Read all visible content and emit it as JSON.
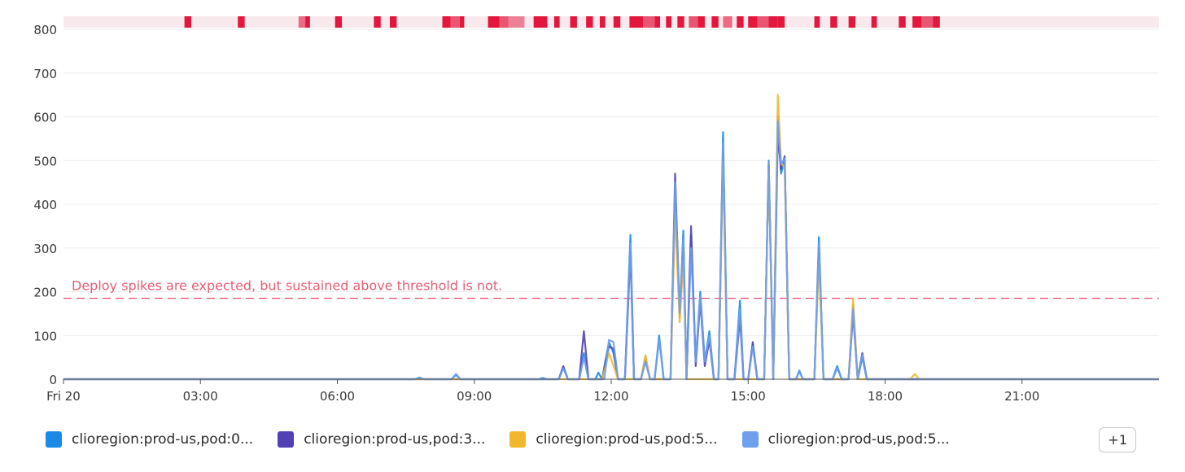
{
  "chart_data": {
    "type": "line",
    "ylim": [
      0,
      800
    ],
    "y_ticks": [
      0,
      100,
      200,
      300,
      400,
      500,
      600,
      700,
      800
    ],
    "x_range_hours": [
      0,
      24
    ],
    "x_ticks": [
      {
        "hour": 0,
        "label": "Fri 20"
      },
      {
        "hour": 3,
        "label": "03:00"
      },
      {
        "hour": 6,
        "label": "06:00"
      },
      {
        "hour": 9,
        "label": "09:00"
      },
      {
        "hour": 12,
        "label": "12:00"
      },
      {
        "hour": 15,
        "label": "15:00"
      },
      {
        "hour": 18,
        "label": "18:00"
      },
      {
        "hour": 21,
        "label": "21:00"
      }
    ],
    "threshold": {
      "value": 185,
      "label": "Deploy spikes are expected, but sustained above threshold is not.",
      "color": "#e85d75"
    },
    "event_bar_color": "#e3173e",
    "events": [
      [
        2.65,
        0.15,
        1
      ],
      [
        3.82,
        0.15,
        1
      ],
      [
        5.15,
        0.18,
        0.6
      ],
      [
        5.3,
        0.1,
        1
      ],
      [
        5.95,
        0.15,
        1
      ],
      [
        6.8,
        0.15,
        1
      ],
      [
        7.15,
        0.15,
        1
      ],
      [
        8.3,
        0.18,
        1
      ],
      [
        8.48,
        0.2,
        0.7
      ],
      [
        8.68,
        0.1,
        1
      ],
      [
        9.3,
        0.25,
        1
      ],
      [
        9.55,
        0.2,
        0.7
      ],
      [
        9.75,
        0.35,
        0.5
      ],
      [
        10.3,
        0.3,
        1
      ],
      [
        10.75,
        0.12,
        1
      ],
      [
        11.1,
        0.15,
        1
      ],
      [
        11.45,
        0.15,
        1
      ],
      [
        11.75,
        0.12,
        1
      ],
      [
        12.05,
        0.15,
        1
      ],
      [
        12.4,
        0.3,
        1
      ],
      [
        12.7,
        0.25,
        0.7
      ],
      [
        12.95,
        0.12,
        1
      ],
      [
        13.2,
        0.12,
        1
      ],
      [
        13.45,
        0.15,
        1
      ],
      [
        13.7,
        0.2,
        0.7
      ],
      [
        13.9,
        0.15,
        1
      ],
      [
        14.2,
        0.15,
        1
      ],
      [
        14.45,
        0.2,
        0.6
      ],
      [
        14.75,
        0.15,
        1
      ],
      [
        15.0,
        0.2,
        1
      ],
      [
        15.2,
        0.25,
        0.7
      ],
      [
        15.45,
        0.2,
        1
      ],
      [
        15.65,
        0.15,
        1
      ],
      [
        16.45,
        0.12,
        1
      ],
      [
        16.8,
        0.15,
        1
      ],
      [
        17.2,
        0.15,
        1
      ],
      [
        17.7,
        0.12,
        1
      ],
      [
        18.3,
        0.15,
        1
      ],
      [
        18.6,
        0.2,
        1
      ],
      [
        18.8,
        0.3,
        0.7
      ],
      [
        19.05,
        0.15,
        1
      ]
    ],
    "series": [
      {
        "name": "clioregion:prod-us,pod:0...",
        "color": "#1a8ae5",
        "points": [
          [
            0,
            0
          ],
          [
            7.7,
            0
          ],
          [
            7.8,
            4
          ],
          [
            7.9,
            0
          ],
          [
            8.5,
            0
          ],
          [
            8.6,
            10
          ],
          [
            8.7,
            0
          ],
          [
            10.4,
            0
          ],
          [
            10.5,
            3
          ],
          [
            10.6,
            0
          ],
          [
            10.85,
            0
          ],
          [
            10.95,
            28
          ],
          [
            11.05,
            0
          ],
          [
            11.3,
            0
          ],
          [
            11.4,
            60
          ],
          [
            11.5,
            0
          ],
          [
            11.65,
            0
          ],
          [
            11.72,
            15
          ],
          [
            11.8,
            0
          ],
          [
            11.85,
            30
          ],
          [
            11.95,
            85
          ],
          [
            12.05,
            60
          ],
          [
            12.15,
            0
          ],
          [
            12.3,
            0
          ],
          [
            12.42,
            330
          ],
          [
            12.5,
            0
          ],
          [
            12.65,
            0
          ],
          [
            12.75,
            50
          ],
          [
            12.85,
            0
          ],
          [
            12.95,
            0
          ],
          [
            13.05,
            100
          ],
          [
            13.15,
            0
          ],
          [
            13.3,
            0
          ],
          [
            13.4,
            440
          ],
          [
            13.5,
            140
          ],
          [
            13.58,
            340
          ],
          [
            13.65,
            0
          ],
          [
            13.75,
            330
          ],
          [
            13.85,
            40
          ],
          [
            13.95,
            200
          ],
          [
            14.05,
            40
          ],
          [
            14.15,
            110
          ],
          [
            14.25,
            0
          ],
          [
            14.35,
            0
          ],
          [
            14.45,
            565
          ],
          [
            14.55,
            0
          ],
          [
            14.7,
            0
          ],
          [
            14.82,
            180
          ],
          [
            14.9,
            0
          ],
          [
            15.0,
            0
          ],
          [
            15.1,
            80
          ],
          [
            15.2,
            0
          ],
          [
            15.35,
            0
          ],
          [
            15.45,
            500
          ],
          [
            15.55,
            0
          ],
          [
            15.65,
            600
          ],
          [
            15.72,
            470
          ],
          [
            15.8,
            500
          ],
          [
            15.9,
            0
          ],
          [
            16.05,
            0
          ],
          [
            16.12,
            20
          ],
          [
            16.2,
            0
          ],
          [
            16.45,
            0
          ],
          [
            16.55,
            325
          ],
          [
            16.65,
            0
          ],
          [
            16.85,
            0
          ],
          [
            16.95,
            30
          ],
          [
            17.05,
            0
          ],
          [
            17.2,
            0
          ],
          [
            17.3,
            170
          ],
          [
            17.4,
            0
          ],
          [
            17.5,
            50
          ],
          [
            17.6,
            0
          ],
          [
            24,
            0
          ]
        ]
      },
      {
        "name": "clioregion:prod-us,pod:3...",
        "color": "#5241b5",
        "points": [
          [
            0,
            0
          ],
          [
            10.85,
            0
          ],
          [
            10.95,
            30
          ],
          [
            11.05,
            0
          ],
          [
            11.3,
            0
          ],
          [
            11.4,
            110
          ],
          [
            11.5,
            0
          ],
          [
            11.8,
            0
          ],
          [
            11.95,
            75
          ],
          [
            12.05,
            70
          ],
          [
            12.15,
            0
          ],
          [
            12.3,
            0
          ],
          [
            12.42,
            290
          ],
          [
            12.5,
            0
          ],
          [
            12.65,
            0
          ],
          [
            12.75,
            45
          ],
          [
            12.85,
            0
          ],
          [
            13.3,
            0
          ],
          [
            13.4,
            470
          ],
          [
            13.5,
            150
          ],
          [
            13.58,
            300
          ],
          [
            13.65,
            0
          ],
          [
            13.75,
            350
          ],
          [
            13.85,
            30
          ],
          [
            13.95,
            180
          ],
          [
            14.05,
            30
          ],
          [
            14.15,
            90
          ],
          [
            14.25,
            0
          ],
          [
            14.35,
            0
          ],
          [
            14.45,
            520
          ],
          [
            14.55,
            0
          ],
          [
            14.7,
            0
          ],
          [
            14.82,
            140
          ],
          [
            14.9,
            0
          ],
          [
            15.0,
            0
          ],
          [
            15.1,
            85
          ],
          [
            15.2,
            0
          ],
          [
            15.35,
            0
          ],
          [
            15.45,
            490
          ],
          [
            15.55,
            0
          ],
          [
            15.65,
            560
          ],
          [
            15.72,
            480
          ],
          [
            15.8,
            510
          ],
          [
            15.9,
            0
          ],
          [
            16.45,
            0
          ],
          [
            16.55,
            300
          ],
          [
            16.65,
            0
          ],
          [
            17.2,
            0
          ],
          [
            17.3,
            150
          ],
          [
            17.4,
            0
          ],
          [
            17.5,
            60
          ],
          [
            17.6,
            0
          ],
          [
            24,
            0
          ]
        ]
      },
      {
        "name": "clioregion:prod-us,pod:5...",
        "color": "#f1b82d",
        "points": [
          [
            0,
            0
          ],
          [
            11.8,
            0
          ],
          [
            11.95,
            60
          ],
          [
            12.05,
            30
          ],
          [
            12.15,
            0
          ],
          [
            12.65,
            0
          ],
          [
            12.75,
            55
          ],
          [
            12.85,
            0
          ],
          [
            13.3,
            0
          ],
          [
            13.4,
            380
          ],
          [
            13.5,
            130
          ],
          [
            13.58,
            270
          ],
          [
            13.65,
            0
          ],
          [
            14.35,
            0
          ],
          [
            14.45,
            500
          ],
          [
            14.55,
            0
          ],
          [
            15.35,
            0
          ],
          [
            15.45,
            480
          ],
          [
            15.55,
            0
          ],
          [
            15.65,
            650
          ],
          [
            15.72,
            500
          ],
          [
            15.8,
            480
          ],
          [
            15.9,
            0
          ],
          [
            16.45,
            0
          ],
          [
            16.55,
            270
          ],
          [
            16.65,
            0
          ],
          [
            17.2,
            0
          ],
          [
            17.3,
            185
          ],
          [
            17.4,
            0
          ],
          [
            18.55,
            0
          ],
          [
            18.65,
            12
          ],
          [
            18.75,
            0
          ],
          [
            24,
            0
          ]
        ]
      },
      {
        "name": "clioregion:prod-us,pod:5...",
        "color": "#6fa0ee",
        "points": [
          [
            0,
            0
          ],
          [
            7.7,
            0
          ],
          [
            7.8,
            3
          ],
          [
            7.9,
            0
          ],
          [
            8.5,
            0
          ],
          [
            8.6,
            12
          ],
          [
            8.7,
            0
          ],
          [
            10.85,
            0
          ],
          [
            10.95,
            25
          ],
          [
            11.05,
            0
          ],
          [
            11.3,
            0
          ],
          [
            11.4,
            50
          ],
          [
            11.5,
            0
          ],
          [
            11.85,
            0
          ],
          [
            11.95,
            90
          ],
          [
            12.05,
            85
          ],
          [
            12.15,
            0
          ],
          [
            12.3,
            0
          ],
          [
            12.42,
            310
          ],
          [
            12.5,
            0
          ],
          [
            12.65,
            0
          ],
          [
            12.75,
            40
          ],
          [
            12.85,
            0
          ],
          [
            12.95,
            0
          ],
          [
            13.05,
            90
          ],
          [
            13.15,
            0
          ],
          [
            13.3,
            0
          ],
          [
            13.4,
            450
          ],
          [
            13.5,
            150
          ],
          [
            13.58,
            320
          ],
          [
            13.65,
            0
          ],
          [
            13.75,
            300
          ],
          [
            13.85,
            40
          ],
          [
            13.95,
            190
          ],
          [
            14.05,
            40
          ],
          [
            14.15,
            100
          ],
          [
            14.25,
            0
          ],
          [
            14.35,
            0
          ],
          [
            14.45,
            540
          ],
          [
            14.55,
            0
          ],
          [
            14.7,
            0
          ],
          [
            14.82,
            160
          ],
          [
            14.9,
            0
          ],
          [
            15.0,
            0
          ],
          [
            15.1,
            75
          ],
          [
            15.2,
            0
          ],
          [
            15.35,
            0
          ],
          [
            15.45,
            495
          ],
          [
            15.55,
            0
          ],
          [
            15.65,
            590
          ],
          [
            15.72,
            490
          ],
          [
            15.8,
            505
          ],
          [
            15.9,
            0
          ],
          [
            16.05,
            0
          ],
          [
            16.12,
            18
          ],
          [
            16.2,
            0
          ],
          [
            16.45,
            0
          ],
          [
            16.55,
            310
          ],
          [
            16.65,
            0
          ],
          [
            16.85,
            0
          ],
          [
            16.95,
            25
          ],
          [
            17.05,
            0
          ],
          [
            17.2,
            0
          ],
          [
            17.3,
            160
          ],
          [
            17.4,
            0
          ],
          [
            17.5,
            55
          ],
          [
            17.6,
            0
          ],
          [
            24,
            0
          ]
        ]
      }
    ],
    "legend": {
      "position": "bottom",
      "items": [
        {
          "label": "clioregion:prod-us,pod:0...",
          "color": "#1a8ae5"
        },
        {
          "label": "clioregion:prod-us,pod:3...",
          "color": "#5241b5"
        },
        {
          "label": "clioregion:prod-us,pod:5...",
          "color": "#f1b82d"
        },
        {
          "label": "clioregion:prod-us,pod:5...",
          "color": "#6fa0ee"
        }
      ],
      "more_label": "+1"
    }
  }
}
